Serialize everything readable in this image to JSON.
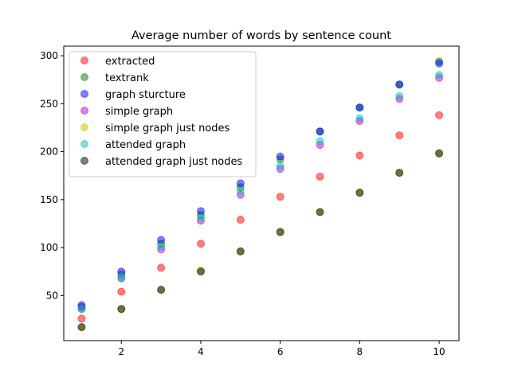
{
  "chart_data": {
    "type": "scatter",
    "title": "Average number of words by sentence count",
    "xlabel": "",
    "ylabel": "",
    "xlim": [
      0.55,
      10.5
    ],
    "ylim": [
      3,
      310
    ],
    "x_ticks": [
      2,
      4,
      6,
      8,
      10
    ],
    "y_ticks": [
      50,
      100,
      150,
      200,
      250,
      300
    ],
    "grid": false,
    "legend_position": "top-left",
    "x": [
      1,
      2,
      3,
      4,
      5,
      6,
      7,
      8,
      9,
      10
    ],
    "series": [
      {
        "name": "extracted",
        "color": "#ff0000",
        "values": [
          26,
          54,
          79,
          104,
          129,
          153,
          174,
          196,
          217,
          238
        ]
      },
      {
        "name": "textrank",
        "color": "#008000",
        "values": [
          38,
          72,
          104,
          134,
          163,
          192,
          221,
          246,
          270,
          294
        ]
      },
      {
        "name": "graph sturcture",
        "color": "#0000ff",
        "values": [
          40,
          75,
          108,
          138,
          167,
          195,
          221,
          246,
          270,
          292
        ]
      },
      {
        "name": "simple graph",
        "color": "#bf00bf",
        "values": [
          36,
          68,
          98,
          128,
          155,
          182,
          207,
          232,
          255,
          277
        ]
      },
      {
        "name": "simple graph just nodes",
        "color": "#bfbf00",
        "values": [
          17,
          36,
          56,
          76,
          96,
          117,
          137,
          158,
          178,
          199
        ]
      },
      {
        "name": "attended graph",
        "color": "#00bfbf",
        "values": [
          36,
          69,
          101,
          131,
          159,
          185,
          211,
          235,
          258,
          280
        ]
      },
      {
        "name": "attended graph just nodes",
        "color": "#000000",
        "values": [
          17,
          36,
          56,
          75,
          96,
          116,
          137,
          157,
          178,
          198
        ]
      }
    ]
  }
}
